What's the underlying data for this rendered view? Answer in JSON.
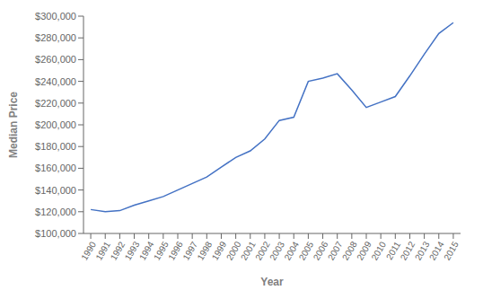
{
  "chart_data": {
    "type": "line",
    "x_label": "Year",
    "y_label": "Median Price",
    "x": [
      1990,
      1991,
      1992,
      1993,
      1994,
      1995,
      1996,
      1997,
      1998,
      1999,
      2000,
      2001,
      2002,
      2003,
      2004,
      2005,
      2006,
      2007,
      2008,
      2009,
      2010,
      2011,
      2012,
      2013,
      2014,
      2015
    ],
    "values": [
      122000,
      120000,
      121000,
      126000,
      130000,
      134000,
      140000,
      146000,
      152000,
      161000,
      170000,
      176000,
      187000,
      204000,
      207000,
      240000,
      243000,
      247000,
      232000,
      216000,
      221000,
      226000,
      245000,
      265000,
      284000,
      294000
    ],
    "color": "#4472C4",
    "xlim": [
      1989.5,
      2015.5
    ],
    "xticks": [
      1990,
      1991,
      1992,
      1993,
      1994,
      1995,
      1996,
      1997,
      1998,
      1999,
      2000,
      2001,
      2002,
      2003,
      2004,
      2005,
      2006,
      2007,
      2008,
      2009,
      2010,
      2011,
      2012,
      2013,
      2014,
      2015
    ],
    "ylim": [
      100000,
      300000
    ],
    "yticks": [
      {
        "value": 100000,
        "label": "$100,000"
      },
      {
        "value": 120000,
        "label": "$120,000"
      },
      {
        "value": 140000,
        "label": "$140,000"
      },
      {
        "value": 160000,
        "label": "$160,000"
      },
      {
        "value": 180000,
        "label": "$180,000"
      },
      {
        "value": 200000,
        "label": "$200,000"
      },
      {
        "value": 220000,
        "label": "$220,000"
      },
      {
        "value": 240000,
        "label": "$240,000"
      },
      {
        "value": 260000,
        "label": "$260,000"
      },
      {
        "value": 280000,
        "label": "$280,000"
      },
      {
        "value": 300000,
        "label": "$300,000"
      }
    ],
    "grid": false
  }
}
